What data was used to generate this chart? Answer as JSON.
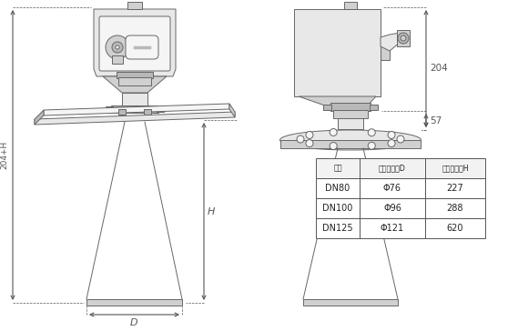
{
  "bg_color": "#ffffff",
  "lc": "#666666",
  "lc_dim": "#555555",
  "fc_body": "#e8e8e8",
  "fc_mid": "#d0d0d0",
  "fc_dark": "#b8b8b8",
  "fc_white": "#f5f5f5",
  "table_headers": [
    "法兰",
    "喇叭口直径D",
    "喇叭口高度H"
  ],
  "table_rows": [
    [
      "DN80",
      "Φ76",
      "227"
    ],
    [
      "DN100",
      "Φ96",
      "288"
    ],
    [
      "DN125",
      "Φ121",
      "620"
    ]
  ],
  "dim_204": "204",
  "dim_57": "57",
  "dim_H": "H",
  "dim_204H": "204+H",
  "dim_D": "D"
}
